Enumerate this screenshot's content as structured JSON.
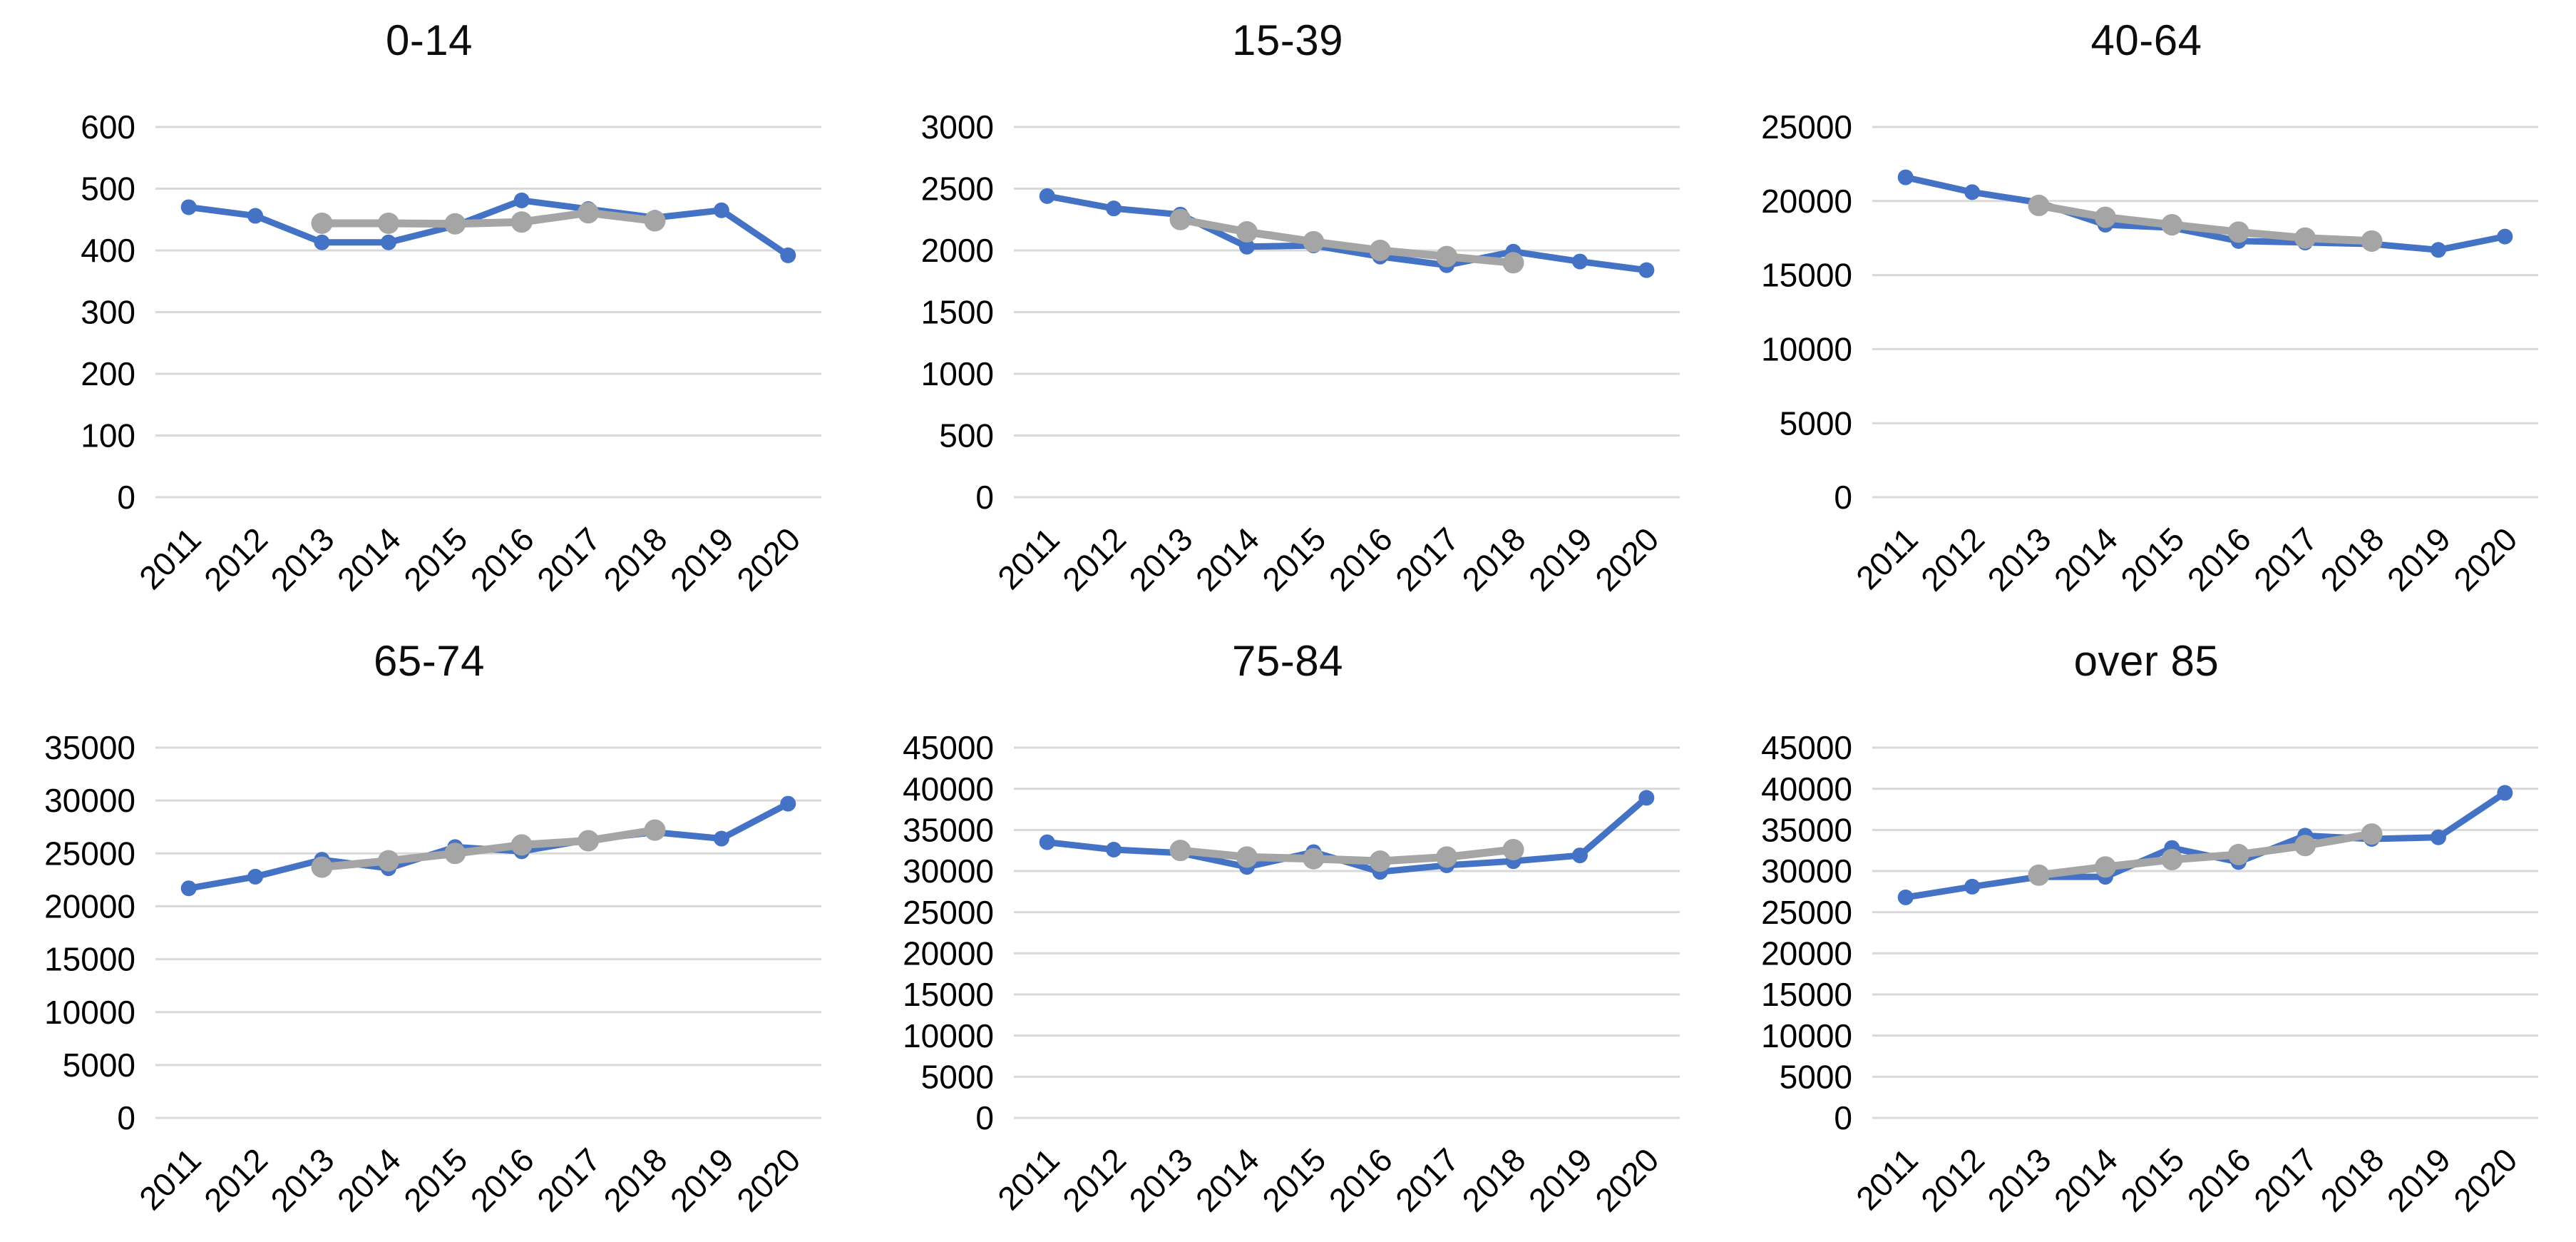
{
  "page": {
    "background": "#ffffff"
  },
  "styles": {
    "series_blue": "#4472C4",
    "series_gray": "#A5A5A5",
    "gridline": "#D9D9D9",
    "text": "#000000"
  },
  "chart_data": [
    {
      "type": "line",
      "title": "0-14",
      "categories": [
        "2011",
        "2012",
        "2013",
        "2014",
        "2015",
        "2016",
        "2017",
        "2018",
        "2019",
        "2020"
      ],
      "ylim": [
        0,
        600
      ],
      "y_ticks": [
        0,
        100,
        200,
        300,
        400,
        500,
        600
      ],
      "grid": true,
      "legend": "none",
      "x_label_rotation": -45,
      "series": [
        {
          "name": "series-blue",
          "color": "#4472C4",
          "values": [
            470,
            456,
            413,
            413,
            440,
            481,
            467,
            453,
            465,
            392
          ]
        },
        {
          "name": "series-gray",
          "color": "#A5A5A5",
          "values": [
            null,
            null,
            444,
            444,
            443,
            446,
            461,
            448,
            null,
            null
          ]
        }
      ]
    },
    {
      "type": "line",
      "title": "15-39",
      "categories": [
        "2011",
        "2012",
        "2013",
        "2014",
        "2015",
        "2016",
        "2017",
        "2018",
        "2019",
        "2020"
      ],
      "ylim": [
        0,
        3000
      ],
      "y_ticks": [
        0,
        500,
        1000,
        1500,
        2000,
        2500,
        3000
      ],
      "grid": true,
      "legend": "none",
      "x_label_rotation": -45,
      "series": [
        {
          "name": "series-blue",
          "color": "#4472C4",
          "values": [
            2440,
            2340,
            2290,
            2030,
            2040,
            1950,
            1880,
            1990,
            1910,
            1840
          ]
        },
        {
          "name": "series-gray",
          "color": "#A5A5A5",
          "values": [
            null,
            null,
            2250,
            2150,
            2070,
            2000,
            1950,
            1900,
            null,
            null
          ]
        }
      ]
    },
    {
      "type": "line",
      "title": "40-64",
      "categories": [
        "2011",
        "2012",
        "2013",
        "2014",
        "2015",
        "2016",
        "2017",
        "2018",
        "2019",
        "2020"
      ],
      "ylim": [
        0,
        25000
      ],
      "y_ticks": [
        0,
        5000,
        10000,
        15000,
        20000,
        25000
      ],
      "grid": true,
      "legend": "none",
      "x_label_rotation": -45,
      "series": [
        {
          "name": "series-blue",
          "color": "#4472C4",
          "values": [
            21600,
            20600,
            19900,
            18400,
            18200,
            17300,
            17200,
            17100,
            16700,
            17600
          ]
        },
        {
          "name": "series-gray",
          "color": "#A5A5A5",
          "values": [
            null,
            null,
            19700,
            18900,
            18400,
            17900,
            17500,
            17300,
            null,
            null
          ]
        }
      ]
    },
    {
      "type": "line",
      "title": "65-74",
      "categories": [
        "2011",
        "2012",
        "2013",
        "2014",
        "2015",
        "2016",
        "2017",
        "2018",
        "2019",
        "2020"
      ],
      "ylim": [
        0,
        35000
      ],
      "y_ticks": [
        0,
        5000,
        10000,
        15000,
        20000,
        25000,
        30000,
        35000
      ],
      "grid": true,
      "legend": "none",
      "x_label_rotation": -45,
      "series": [
        {
          "name": "series-blue",
          "color": "#4472C4",
          "values": [
            21700,
            22800,
            24400,
            23600,
            25600,
            25200,
            26300,
            27000,
            26400,
            29700
          ]
        },
        {
          "name": "series-gray",
          "color": "#A5A5A5",
          "values": [
            null,
            null,
            23700,
            24300,
            25000,
            25800,
            26200,
            27200,
            null,
            null
          ]
        }
      ]
    },
    {
      "type": "line",
      "title": "75-84",
      "categories": [
        "2011",
        "2012",
        "2013",
        "2014",
        "2015",
        "2016",
        "2017",
        "2018",
        "2019",
        "2020"
      ],
      "ylim": [
        0,
        45000
      ],
      "y_ticks": [
        0,
        5000,
        10000,
        15000,
        20000,
        25000,
        30000,
        35000,
        40000,
        45000
      ],
      "grid": true,
      "legend": "none",
      "x_label_rotation": -45,
      "series": [
        {
          "name": "series-blue",
          "color": "#4472C4",
          "values": [
            33500,
            32600,
            32200,
            30500,
            32300,
            29900,
            30700,
            31200,
            31900,
            38900
          ]
        },
        {
          "name": "series-gray",
          "color": "#A5A5A5",
          "values": [
            null,
            null,
            32500,
            31700,
            31500,
            31200,
            31700,
            32600,
            null,
            null
          ]
        }
      ]
    },
    {
      "type": "line",
      "title": "over 85",
      "categories": [
        "2011",
        "2012",
        "2013",
        "2014",
        "2015",
        "2016",
        "2017",
        "2018",
        "2019",
        "2020"
      ],
      "ylim": [
        0,
        45000
      ],
      "y_ticks": [
        0,
        5000,
        10000,
        15000,
        20000,
        25000,
        30000,
        35000,
        40000,
        45000
      ],
      "grid": true,
      "legend": "none",
      "x_label_rotation": -45,
      "series": [
        {
          "name": "series-blue",
          "color": "#4472C4",
          "values": [
            26800,
            28100,
            29300,
            29300,
            32800,
            31100,
            34300,
            33900,
            34100,
            39500
          ]
        },
        {
          "name": "series-gray",
          "color": "#A5A5A5",
          "values": [
            null,
            null,
            29500,
            30500,
            31400,
            32000,
            33100,
            34500,
            null,
            null
          ]
        }
      ]
    }
  ]
}
